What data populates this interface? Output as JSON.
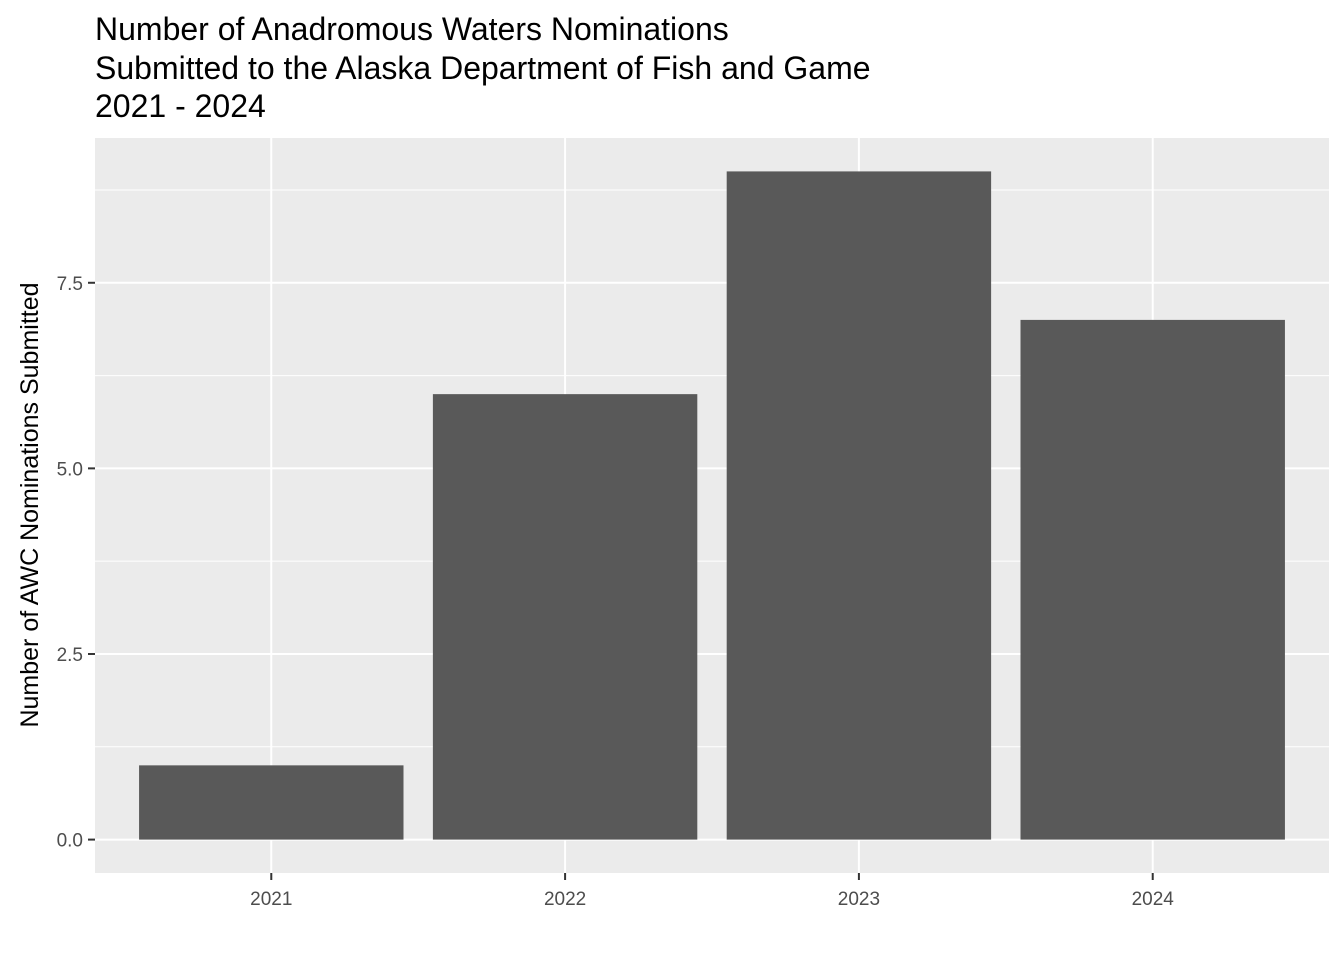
{
  "chart_data": {
    "type": "bar",
    "title_lines": [
      "Number of Anadromous Waters Nominations",
      "Submitted to the Alaska Department of Fish and Game",
      "2021 - 2024"
    ],
    "xlabel": "",
    "ylabel": "Number of AWC Nominations Submitted",
    "categories": [
      "2021",
      "2022",
      "2023",
      "2024"
    ],
    "values": [
      1,
      6,
      9,
      7
    ],
    "ylim": [
      -0.45,
      9.45
    ],
    "yticks": [
      0,
      2.5,
      5,
      7.5
    ],
    "ytick_labels": [
      "0.0",
      "2.5",
      "5.0",
      "7.5"
    ],
    "grid": true,
    "colors": {
      "bar": "#595959",
      "panel": "#ebebeb",
      "grid": "#ffffff",
      "tick": "#333333",
      "tick_text": "#4d4d4d"
    }
  }
}
